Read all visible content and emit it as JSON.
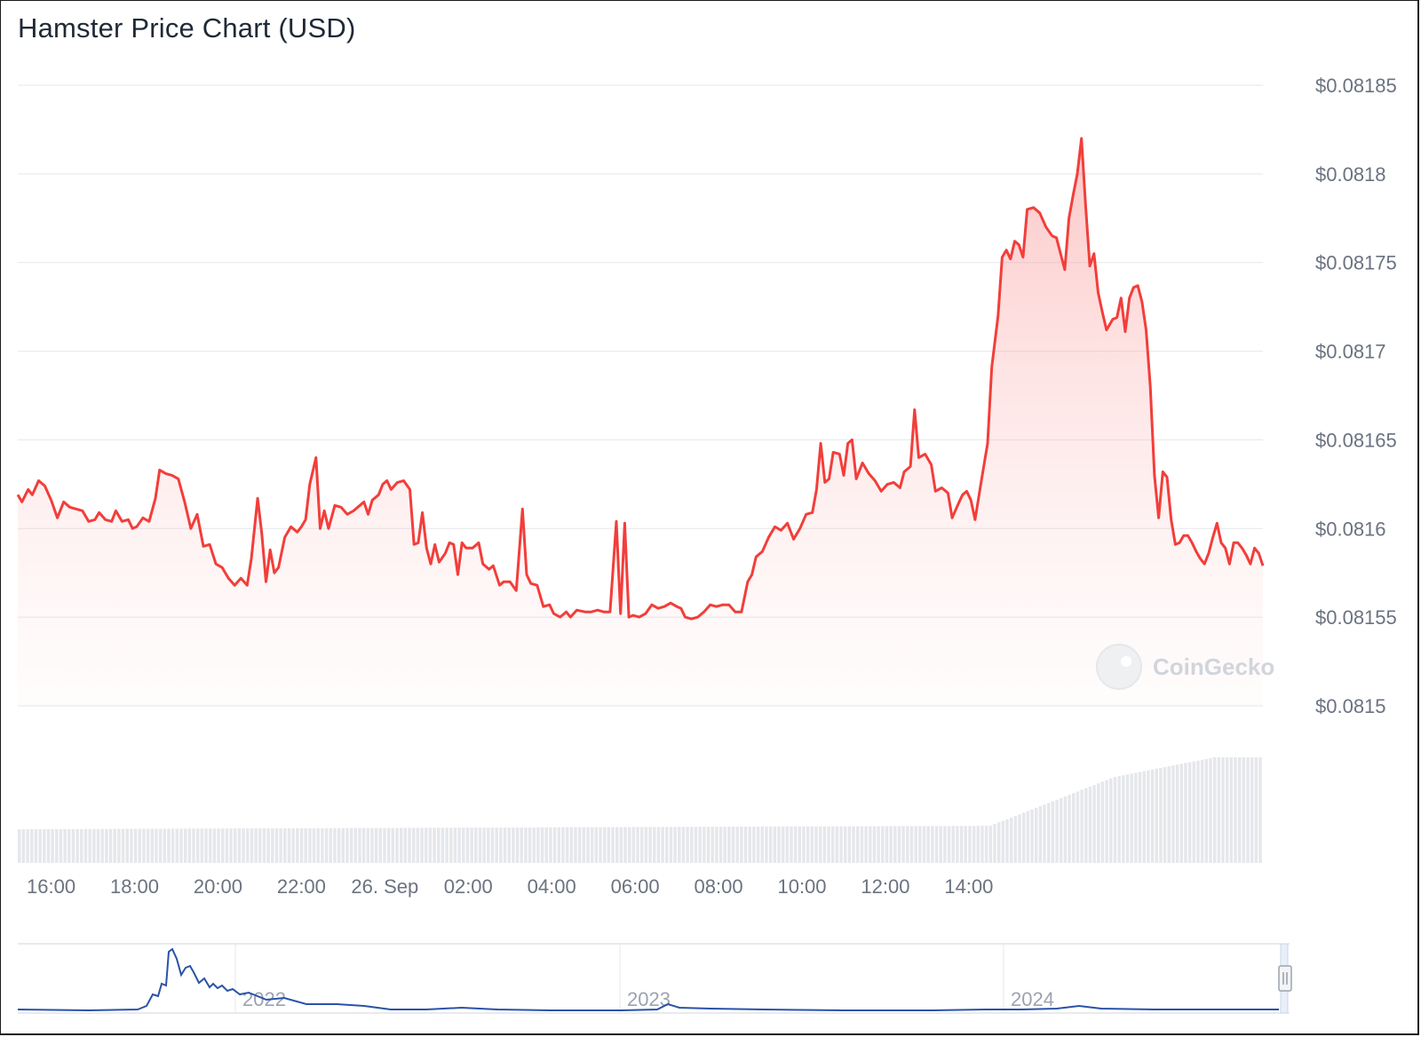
{
  "chart_data": {
    "type": "line",
    "title": "Hamster Price Chart (USD)",
    "xlabel": "",
    "ylabel": "",
    "ylim": [
      0.0815,
      0.08185
    ],
    "y_ticks": [
      "$0.0815",
      "$0.08155",
      "$0.0816",
      "$0.08165",
      "$0.0817",
      "$0.08175",
      "$0.0818",
      "$0.08185"
    ],
    "x_ticks": [
      "16:00",
      "18:00",
      "20:00",
      "22:00",
      "26. Sep",
      "02:00",
      "04:00",
      "06:00",
      "08:00",
      "10:00",
      "12:00",
      "14:00"
    ],
    "grid": true,
    "line_color": "#f23e3a",
    "fill_color": "#fde2e1",
    "volume_color": "#e5e7eb",
    "watermark": "CoinGecko",
    "series": [
      {
        "values": [
          [
            15.2,
            0.081619
          ],
          [
            15.3,
            0.081615
          ],
          [
            15.45,
            0.081622
          ],
          [
            15.55,
            0.081619
          ],
          [
            15.7,
            0.081627
          ],
          [
            15.85,
            0.081624
          ],
          [
            16.0,
            0.081616
          ],
          [
            16.15,
            0.081606
          ],
          [
            16.3,
            0.081615
          ],
          [
            16.45,
            0.081612
          ],
          [
            16.6,
            0.081611
          ],
          [
            16.75,
            0.08161
          ],
          [
            16.9,
            0.081604
          ],
          [
            17.05,
            0.081605
          ],
          [
            17.15,
            0.081609
          ],
          [
            17.3,
            0.081605
          ],
          [
            17.45,
            0.081604
          ],
          [
            17.55,
            0.08161
          ],
          [
            17.7,
            0.081604
          ],
          [
            17.85,
            0.081605
          ],
          [
            17.95,
            0.0816
          ],
          [
            18.05,
            0.081601
          ],
          [
            18.2,
            0.081606
          ],
          [
            18.35,
            0.081604
          ],
          [
            18.5,
            0.081617
          ],
          [
            18.6,
            0.081633
          ],
          [
            18.75,
            0.081631
          ],
          [
            18.9,
            0.08163
          ],
          [
            19.05,
            0.081628
          ],
          [
            19.2,
            0.081615
          ],
          [
            19.35,
            0.0816
          ],
          [
            19.5,
            0.081608
          ],
          [
            19.65,
            0.08159
          ],
          [
            19.8,
            0.081591
          ],
          [
            19.95,
            0.08158
          ],
          [
            20.1,
            0.081578
          ],
          [
            20.25,
            0.081572
          ],
          [
            20.4,
            0.081568
          ],
          [
            20.55,
            0.081572
          ],
          [
            20.7,
            0.081568
          ],
          [
            20.8,
            0.081583
          ],
          [
            20.95,
            0.081617
          ],
          [
            21.05,
            0.081597
          ],
          [
            21.15,
            0.08157
          ],
          [
            21.25,
            0.081588
          ],
          [
            21.35,
            0.081575
          ],
          [
            21.45,
            0.081578
          ],
          [
            21.6,
            0.081595
          ],
          [
            21.75,
            0.081601
          ],
          [
            21.9,
            0.081598
          ],
          [
            22.0,
            0.081601
          ],
          [
            22.1,
            0.081605
          ],
          [
            22.2,
            0.081625
          ],
          [
            22.35,
            0.08164
          ],
          [
            22.45,
            0.0816
          ],
          [
            22.55,
            0.08161
          ],
          [
            22.65,
            0.0816
          ],
          [
            22.8,
            0.081613
          ],
          [
            22.95,
            0.081612
          ],
          [
            23.1,
            0.081608
          ],
          [
            23.25,
            0.08161
          ],
          [
            23.35,
            0.081612
          ],
          [
            23.5,
            0.081615
          ],
          [
            23.6,
            0.081608
          ],
          [
            23.7,
            0.081616
          ],
          [
            23.85,
            0.081619
          ],
          [
            23.95,
            0.081625
          ],
          [
            24.05,
            0.081627
          ],
          [
            24.15,
            0.081622
          ],
          [
            24.3,
            0.081626
          ],
          [
            24.45,
            0.081627
          ],
          [
            24.6,
            0.081622
          ],
          [
            24.7,
            0.081591
          ],
          [
            24.8,
            0.081592
          ],
          [
            24.9,
            0.081609
          ],
          [
            25.0,
            0.081589
          ],
          [
            25.1,
            0.08158
          ],
          [
            25.2,
            0.081591
          ],
          [
            25.3,
            0.081581
          ],
          [
            25.45,
            0.081586
          ],
          [
            25.55,
            0.081592
          ],
          [
            25.65,
            0.081591
          ],
          [
            25.75,
            0.081574
          ],
          [
            25.85,
            0.081592
          ],
          [
            25.95,
            0.081589
          ],
          [
            26.1,
            0.081589
          ],
          [
            26.25,
            0.081592
          ],
          [
            26.35,
            0.08158
          ],
          [
            26.5,
            0.081577
          ],
          [
            26.6,
            0.081579
          ],
          [
            26.75,
            0.081568
          ],
          [
            26.85,
            0.08157
          ],
          [
            27.0,
            0.08157
          ],
          [
            27.15,
            0.081565
          ],
          [
            27.3,
            0.081611
          ],
          [
            27.4,
            0.081574
          ],
          [
            27.5,
            0.081569
          ],
          [
            27.65,
            0.081568
          ],
          [
            27.8,
            0.081556
          ],
          [
            27.95,
            0.081557
          ],
          [
            28.05,
            0.081552
          ],
          [
            28.2,
            0.08155
          ],
          [
            28.35,
            0.081553
          ],
          [
            28.45,
            0.08155
          ],
          [
            28.6,
            0.081554
          ],
          [
            28.8,
            0.081553
          ],
          [
            28.95,
            0.081553
          ],
          [
            29.1,
            0.081554
          ],
          [
            29.25,
            0.081553
          ],
          [
            29.4,
            0.081553
          ],
          [
            29.55,
            0.081604
          ],
          [
            29.65,
            0.081552
          ],
          [
            29.75,
            0.081603
          ],
          [
            29.85,
            0.08155
          ],
          [
            29.95,
            0.081551
          ],
          [
            30.1,
            0.08155
          ],
          [
            30.25,
            0.081552
          ],
          [
            30.4,
            0.081557
          ],
          [
            30.55,
            0.081555
          ],
          [
            30.7,
            0.081556
          ],
          [
            30.85,
            0.081558
          ],
          [
            31.0,
            0.081556
          ],
          [
            31.1,
            0.081555
          ],
          [
            31.2,
            0.08155
          ],
          [
            31.35,
            0.081549
          ],
          [
            31.5,
            0.08155
          ],
          [
            31.65,
            0.081553
          ],
          [
            31.8,
            0.081557
          ],
          [
            31.95,
            0.081556
          ],
          [
            32.1,
            0.081557
          ],
          [
            32.25,
            0.081557
          ],
          [
            32.4,
            0.081553
          ],
          [
            32.55,
            0.081553
          ],
          [
            32.7,
            0.08157
          ],
          [
            32.8,
            0.081574
          ],
          [
            32.9,
            0.081584
          ],
          [
            33.05,
            0.081587
          ],
          [
            33.2,
            0.081595
          ],
          [
            33.35,
            0.081601
          ],
          [
            33.5,
            0.081599
          ],
          [
            33.65,
            0.081603
          ],
          [
            33.8,
            0.081594
          ],
          [
            33.95,
            0.0816
          ],
          [
            34.1,
            0.081608
          ],
          [
            34.25,
            0.081609
          ],
          [
            34.35,
            0.081622
          ],
          [
            34.45,
            0.081648
          ],
          [
            34.55,
            0.081626
          ],
          [
            34.65,
            0.081628
          ],
          [
            34.75,
            0.081643
          ],
          [
            34.9,
            0.081642
          ],
          [
            35.0,
            0.08163
          ],
          [
            35.1,
            0.081648
          ],
          [
            35.2,
            0.08165
          ],
          [
            35.3,
            0.081628
          ],
          [
            35.45,
            0.081637
          ],
          [
            35.6,
            0.081631
          ],
          [
            35.75,
            0.081627
          ],
          [
            35.9,
            0.081621
          ],
          [
            36.05,
            0.081625
          ],
          [
            36.2,
            0.081626
          ],
          [
            36.35,
            0.081623
          ],
          [
            36.45,
            0.081632
          ],
          [
            36.6,
            0.081635
          ],
          [
            36.7,
            0.081667
          ],
          [
            36.8,
            0.08164
          ],
          [
            36.95,
            0.081642
          ],
          [
            37.1,
            0.081636
          ],
          [
            37.2,
            0.081621
          ],
          [
            37.35,
            0.081623
          ],
          [
            37.5,
            0.08162
          ],
          [
            37.6,
            0.081606
          ],
          [
            37.75,
            0.081614
          ],
          [
            37.85,
            0.081619
          ],
          [
            37.95,
            0.081621
          ],
          [
            38.05,
            0.081616
          ],
          [
            38.15,
            0.081605
          ],
          [
            38.3,
            0.081627
          ],
          [
            38.45,
            0.081648
          ],
          [
            38.55,
            0.081691
          ],
          [
            38.7,
            0.08172
          ],
          [
            38.8,
            0.081753
          ],
          [
            38.9,
            0.081757
          ],
          [
            39.0,
            0.081752
          ],
          [
            39.1,
            0.081762
          ],
          [
            39.2,
            0.08176
          ],
          [
            39.3,
            0.081753
          ],
          [
            39.4,
            0.08178
          ],
          [
            39.55,
            0.081781
          ],
          [
            39.7,
            0.081778
          ],
          [
            39.85,
            0.08177
          ],
          [
            40.0,
            0.081765
          ],
          [
            40.1,
            0.081764
          ],
          [
            40.2,
            0.081755
          ],
          [
            40.3,
            0.081746
          ],
          [
            40.4,
            0.081775
          ],
          [
            40.5,
            0.081788
          ],
          [
            40.6,
            0.0818
          ],
          [
            40.7,
            0.08182
          ],
          [
            40.8,
            0.081782
          ],
          [
            40.9,
            0.081748
          ],
          [
            41.0,
            0.081755
          ],
          [
            41.1,
            0.081733
          ],
          [
            41.2,
            0.081722
          ],
          [
            41.3,
            0.081712
          ],
          [
            41.45,
            0.081718
          ],
          [
            41.55,
            0.081719
          ],
          [
            41.65,
            0.08173
          ],
          [
            41.75,
            0.081711
          ],
          [
            41.85,
            0.08173
          ],
          [
            41.95,
            0.081736
          ],
          [
            42.05,
            0.081737
          ],
          [
            42.15,
            0.081728
          ],
          [
            42.25,
            0.081712
          ],
          [
            42.35,
            0.08168
          ],
          [
            42.45,
            0.08163
          ],
          [
            42.55,
            0.081606
          ],
          [
            42.65,
            0.081632
          ],
          [
            42.75,
            0.081629
          ],
          [
            42.85,
            0.081605
          ],
          [
            42.95,
            0.081591
          ],
          [
            43.05,
            0.081592
          ],
          [
            43.15,
            0.081596
          ],
          [
            43.25,
            0.081596
          ],
          [
            43.35,
            0.081592
          ],
          [
            43.45,
            0.081587
          ],
          [
            43.55,
            0.081583
          ],
          [
            43.65,
            0.08158
          ],
          [
            43.75,
            0.081586
          ],
          [
            43.85,
            0.081595
          ],
          [
            43.95,
            0.081603
          ],
          [
            44.05,
            0.081592
          ],
          [
            44.15,
            0.081589
          ],
          [
            44.25,
            0.08158
          ],
          [
            44.35,
            0.081592
          ],
          [
            44.45,
            0.081592
          ],
          [
            44.55,
            0.081589
          ],
          [
            44.65,
            0.081585
          ],
          [
            44.75,
            0.08158
          ],
          [
            44.85,
            0.081589
          ],
          [
            44.95,
            0.081586
          ],
          [
            45.05,
            0.081579
          ]
        ]
      }
    ],
    "navigator": {
      "labels": [
        "2022",
        "2023",
        "2024"
      ]
    }
  }
}
